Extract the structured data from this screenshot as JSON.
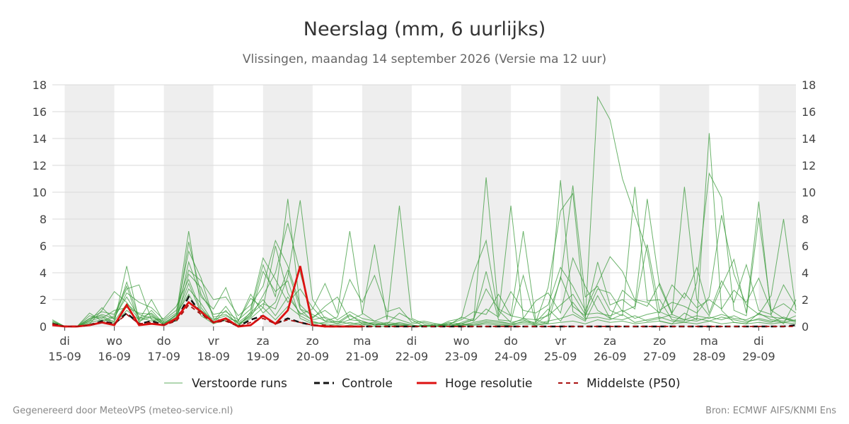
{
  "chart_data": {
    "type": "line",
    "title": "Neerslag (mm, 6 uurlijks)",
    "subtitle": "Vlissingen, maandag 14 september 2026 (Versie ma 12 uur)",
    "ylim": [
      0,
      18
    ],
    "yticks": [
      0,
      2,
      4,
      6,
      8,
      10,
      12,
      14,
      16,
      18
    ],
    "xlim": [
      0,
      60
    ],
    "grid": true,
    "legend_position": "bottom",
    "x_ticks": [
      {
        "x": 1,
        "day": "di",
        "date": "15-09"
      },
      {
        "x": 5,
        "day": "wo",
        "date": "16-09"
      },
      {
        "x": 9,
        "day": "do",
        "date": "17-09"
      },
      {
        "x": 13,
        "day": "vr",
        "date": "18-09"
      },
      {
        "x": 17,
        "day": "za",
        "date": "19-09"
      },
      {
        "x": 21,
        "day": "zo",
        "date": "20-09"
      },
      {
        "x": 25,
        "day": "ma",
        "date": "21-09"
      },
      {
        "x": 29,
        "day": "di",
        "date": "22-09"
      },
      {
        "x": 33,
        "day": "wo",
        "date": "23-09"
      },
      {
        "x": 37,
        "day": "do",
        "date": "24-09"
      },
      {
        "x": 41,
        "day": "vr",
        "date": "25-09"
      },
      {
        "x": 45,
        "day": "za",
        "date": "26-09"
      },
      {
        "x": 49,
        "day": "zo",
        "date": "27-09"
      },
      {
        "x": 53,
        "day": "ma",
        "date": "28-09"
      },
      {
        "x": 57,
        "day": "di",
        "date": "29-09"
      }
    ],
    "shaded_days": [
      [
        1,
        5
      ],
      [
        9,
        13
      ],
      [
        17,
        21
      ],
      [
        25,
        29
      ],
      [
        33,
        37
      ],
      [
        41,
        45
      ],
      [
        49,
        53
      ],
      [
        57,
        60
      ]
    ],
    "series": [
      {
        "name": "Controle",
        "kind": "control",
        "color": "#111111",
        "x": [
          0,
          1,
          2,
          3,
          4,
          5,
          6,
          7,
          8,
          9,
          10,
          11,
          12,
          13,
          14,
          15,
          16,
          17,
          18,
          19,
          20,
          21,
          22,
          23,
          24,
          25,
          26,
          27,
          28,
          29,
          30,
          31,
          32,
          33,
          34,
          35,
          36,
          37,
          38,
          39,
          40,
          41,
          42,
          43,
          44,
          45,
          46,
          47,
          48,
          49,
          50,
          51,
          52,
          53,
          54,
          55,
          56,
          57,
          58,
          59,
          60
        ],
        "values": [
          0.2,
          0,
          0,
          0.1,
          0.4,
          0.2,
          1.0,
          0.2,
          0.4,
          0.1,
          0.5,
          2.2,
          1.0,
          0.3,
          0.5,
          0,
          0.5,
          0.8,
          0.2,
          0.6,
          0.3,
          0.1,
          0,
          0,
          0,
          0,
          0,
          0,
          0,
          0,
          0,
          0,
          0,
          0,
          0,
          0,
          0,
          0,
          0,
          0,
          0,
          0,
          0,
          0,
          0,
          0,
          0,
          0,
          0,
          0,
          0,
          0,
          0,
          0,
          0,
          0,
          0,
          0,
          0,
          0,
          0.1
        ]
      },
      {
        "name": "Hoge resolutie",
        "kind": "hires",
        "color": "#dd1111",
        "x": [
          0,
          1,
          2,
          3,
          4,
          5,
          6,
          7,
          8,
          9,
          10,
          11,
          12,
          13,
          14,
          15,
          16,
          17,
          18,
          19,
          20,
          21,
          22,
          23,
          24,
          25
        ],
        "values": [
          0.1,
          0,
          0,
          0.1,
          0.3,
          0.1,
          1.6,
          0.1,
          0.2,
          0.1,
          0.6,
          1.8,
          1.1,
          0.3,
          0.6,
          0,
          0.1,
          0.8,
          0.2,
          1.2,
          4.5,
          0.1,
          0,
          0,
          0,
          0
        ]
      },
      {
        "name": "Middelste (P50)",
        "kind": "median",
        "color": "#aa1111",
        "x": [
          0,
          1,
          2,
          3,
          4,
          5,
          6,
          7,
          8,
          9,
          10,
          11,
          12,
          13,
          14,
          15,
          16,
          17,
          18,
          19,
          20,
          21,
          22,
          23,
          24,
          25,
          26,
          27,
          28,
          29,
          30,
          31,
          32,
          33,
          34,
          35,
          36,
          37,
          38,
          39,
          40,
          41,
          42,
          43,
          44,
          45,
          46,
          47,
          48,
          49,
          50,
          51,
          52,
          53,
          54,
          55,
          56,
          57,
          58,
          59,
          60
        ],
        "values": [
          0.2,
          0,
          0,
          0.1,
          0.3,
          0.2,
          0.9,
          0.2,
          0.3,
          0.1,
          0.4,
          1.6,
          0.9,
          0.3,
          0.4,
          0,
          0.3,
          0.6,
          0.2,
          0.5,
          0.3,
          0.1,
          0.1,
          0,
          0,
          0,
          0,
          0,
          0,
          0,
          0,
          0,
          0,
          0,
          0,
          0,
          0,
          0,
          0,
          0,
          0,
          0,
          0,
          0,
          0,
          0,
          0,
          0,
          0,
          0,
          0,
          0,
          0,
          0,
          0,
          0,
          0,
          0,
          0,
          0,
          0
        ]
      }
    ],
    "ensemble": {
      "name": "Verstoorde runs",
      "color": "#3a9a3a",
      "x_start": 0,
      "x_step": 1,
      "members": [
        [
          0.5,
          0,
          0,
          0.4,
          1.4,
          0.5,
          3.3,
          0.6,
          1.0,
          0.2,
          0.9,
          7.1,
          1.4,
          0.3,
          1.2,
          0,
          1.1,
          4.6,
          2.2,
          9.5,
          1.3,
          0.4,
          0.1,
          0,
          0.1,
          0.2,
          0,
          0,
          0,
          0,
          0,
          0,
          0,
          0.2,
          0.5,
          11.1,
          1.2,
          0.3,
          0.5,
          0.1,
          0.3,
          10.9,
          1.1,
          0.5,
          17.1,
          15.4,
          11.0,
          8.3,
          5.6,
          0.4,
          0.2,
          1.0,
          0.5,
          14.4,
          1.2,
          0.3,
          0.2,
          1.0,
          0.5,
          0.4,
          0.8
        ],
        [
          0.3,
          0,
          0,
          0.6,
          0.8,
          0.3,
          4.5,
          0.4,
          0.7,
          0.4,
          1.0,
          5.6,
          3.6,
          0.6,
          0.4,
          0.1,
          0.9,
          1.7,
          1.3,
          3.7,
          9.4,
          2.0,
          0.6,
          0.2,
          0.8,
          0.4,
          0.1,
          0.3,
          0.2,
          0,
          0.1,
          0,
          0.4,
          0.6,
          4.0,
          6.4,
          0.8,
          9.0,
          0.6,
          0.2,
          0.9,
          3.5,
          10.5,
          2.2,
          3.0,
          1.2,
          0.8,
          10.4,
          1.9,
          2.0,
          0.5,
          0.4,
          3.3,
          11.4,
          9.6,
          1.2,
          0.8,
          8.1,
          1.2,
          0.6,
          0.3
        ],
        [
          0.4,
          0,
          0,
          1.0,
          0.4,
          0.8,
          2.8,
          3.1,
          0.5,
          0.2,
          0.6,
          4.8,
          2.2,
          1.3,
          2.9,
          0.4,
          2.1,
          1.4,
          6.0,
          2.5,
          0.9,
          1.3,
          3.2,
          1.0,
          7.1,
          1.0,
          0.4,
          0.2,
          1.0,
          0.5,
          0,
          0.2,
          0,
          0.3,
          0.6,
          2.8,
          1.3,
          0.8,
          7.1,
          0.5,
          0.2,
          3.7,
          1.5,
          0.8,
          2.8,
          2.5,
          1.1,
          1.5,
          9.5,
          3.0,
          0.9,
          10.4,
          2.0,
          0.8,
          3.0,
          5.0,
          1.0,
          9.3,
          0.8,
          0.2,
          2.0
        ],
        [
          0.2,
          0,
          0,
          0.2,
          1.2,
          2.6,
          1.8,
          0.5,
          2.0,
          0.3,
          0.8,
          3.2,
          1.0,
          0.4,
          1.5,
          0.2,
          0.7,
          2.3,
          4.0,
          7.7,
          4.0,
          0.6,
          1.5,
          2.2,
          0.5,
          0.9,
          6.1,
          0.5,
          9.0,
          0.6,
          0.2,
          0,
          0.3,
          0.2,
          0.5,
          4.1,
          0.5,
          0.4,
          3.8,
          0.3,
          2.9,
          8.6,
          9.9,
          0.7,
          4.8,
          1.6,
          2.0,
          1.3,
          6.1,
          1.2,
          1.8,
          1.5,
          1.0,
          2.2,
          8.3,
          3.9,
          1.6,
          0.9,
          2.3,
          8.0,
          1.2
        ],
        [
          0.1,
          0,
          0,
          0.8,
          0.6,
          1.2,
          1.4,
          1.0,
          0.9,
          0.1,
          0.5,
          6.3,
          2.4,
          0.9,
          1.1,
          0.5,
          1.3,
          5.1,
          3.5,
          1.8,
          2.8,
          1.4,
          0.4,
          0.7,
          3.5,
          1.8,
          3.8,
          1.1,
          1.4,
          0.3,
          0.4,
          0.2,
          0.1,
          0.7,
          0.4,
          1.3,
          0.7,
          2.6,
          1.2,
          1.0,
          1.6,
          4.4,
          3.0,
          1.2,
          3.2,
          5.2,
          4.1,
          2.0,
          1.8,
          1.0,
          3.1,
          2.1,
          4.4,
          1.0,
          3.4,
          1.8,
          4.6,
          1.2,
          0.9,
          3.1,
          1.5
        ],
        [
          0.3,
          0,
          0,
          0.5,
          0.9,
          0.6,
          2.5,
          1.8,
          1.4,
          0.5,
          1.2,
          4.2,
          3.4,
          2.0,
          2.2,
          0.8,
          1.6,
          3.0,
          6.4,
          4.5,
          1.6,
          0.7,
          1.2,
          0.5,
          1.1,
          0.6,
          0.4,
          0.8,
          0.5,
          0.2,
          0.3,
          0.1,
          0.2,
          0.5,
          1.1,
          0.9,
          2.4,
          0.8,
          0.6,
          1.9,
          2.5,
          1.0,
          5.1,
          3.0,
          1.2,
          0.6,
          2.7,
          1.9,
          1.5,
          3.2,
          1.0,
          2.5,
          1.4,
          2.0,
          1.3,
          2.7,
          1.8,
          3.6,
          1.2,
          1.7,
          1.0
        ],
        [
          0.2,
          0,
          0,
          0.3,
          0.5,
          0.4,
          1.7,
          0.9,
          0.6,
          0.3,
          0.4,
          3.9,
          2.9,
          0.7,
          0.9,
          0.2,
          0.8,
          4.1,
          2.6,
          3.4,
          0.6,
          0.2,
          0.3,
          0.4,
          0.2,
          0.3,
          0.2,
          0.1,
          0.3,
          0.1,
          0,
          0.1,
          0,
          0.1,
          0.3,
          0.5,
          0.4,
          0.2,
          0.6,
          0.5,
          0.8,
          1.6,
          2.4,
          0.9,
          1.0,
          0.8,
          1.2,
          0.6,
          0.9,
          1.1,
          0.7,
          0.5,
          0.8,
          0.6,
          0.9,
          0.6,
          0.5,
          0.9,
          0.7,
          0.6,
          0.4
        ],
        [
          0.1,
          0,
          0,
          0.6,
          1.1,
          0.9,
          3.0,
          0.3,
          1.2,
          0.2,
          0.7,
          2.8,
          1.7,
          0.3,
          0.6,
          0.4,
          2.4,
          1.0,
          1.8,
          4.2,
          1.3,
          0.9,
          0.4,
          0.2,
          0.5,
          0.4,
          0.1,
          0.2,
          0.1,
          0,
          0.1,
          0,
          0.1,
          0.2,
          0.1,
          0.3,
          0.2,
          0.1,
          0.4,
          0.3,
          1.3,
          0.4,
          1.8,
          0.6,
          0.7,
          0.5,
          0.9,
          0.3,
          0.5,
          0.7,
          0.4,
          0.3,
          0.6,
          0.4,
          0.7,
          0.5,
          0.3,
          0.6,
          0.4,
          0.3,
          0.5
        ],
        [
          0.4,
          0,
          0,
          0.2,
          0.3,
          0.7,
          2.2,
          0.7,
          0.4,
          0.6,
          1.5,
          3.5,
          1.2,
          0.5,
          0.8,
          0.3,
          1.0,
          2.0,
          0.8,
          2.2,
          1.0,
          0.5,
          0.7,
          0.3,
          0.9,
          0.2,
          0.3,
          0.1,
          0.2,
          0.1,
          0,
          0,
          0.2,
          0.1,
          0.2,
          0.4,
          0.3,
          0.2,
          0.3,
          0.2,
          0.4,
          0.6,
          0.9,
          0.4,
          2.3,
          0.6,
          0.5,
          0.8,
          0.4,
          0.6,
          0.9,
          0.5,
          0.4,
          0.7,
          0.5,
          0.8,
          0.4,
          0.5,
          0.3,
          0.7,
          0.4
        ],
        [
          0.3,
          0,
          0,
          0.4,
          0.7,
          0.2,
          1.2,
          0.5,
          0.8,
          0.1,
          0.9,
          2.4,
          0.8,
          0.2,
          0.5,
          0.1,
          0.6,
          1.4,
          0.5,
          1.5,
          0.8,
          0.3,
          0.2,
          0.1,
          0.3,
          0.1,
          0.2,
          0.1,
          0.1,
          0,
          0,
          0,
          0,
          0.1,
          0.1,
          0.2,
          0.1,
          0.1,
          0.2,
          0.1,
          0.2,
          0.3,
          0.4,
          0.2,
          0.5,
          0.3,
          0.4,
          0.2,
          0.3,
          0.4,
          0.2,
          0.3,
          0.2,
          0.4,
          0.2,
          0.3,
          0.2,
          0.3,
          0.2,
          0.3,
          0.2
        ]
      ]
    }
  },
  "legend": {
    "ensemble_label": "Verstoorde runs",
    "control_label": "Controle",
    "hires_label": "Hoge resolutie",
    "median_label": "Middelste (P50)"
  },
  "footer": {
    "left": "Gegenereerd door MeteoVPS (meteo-service.nl)",
    "right": "Bron: ECMWF AIFS/KNMI Ens"
  }
}
